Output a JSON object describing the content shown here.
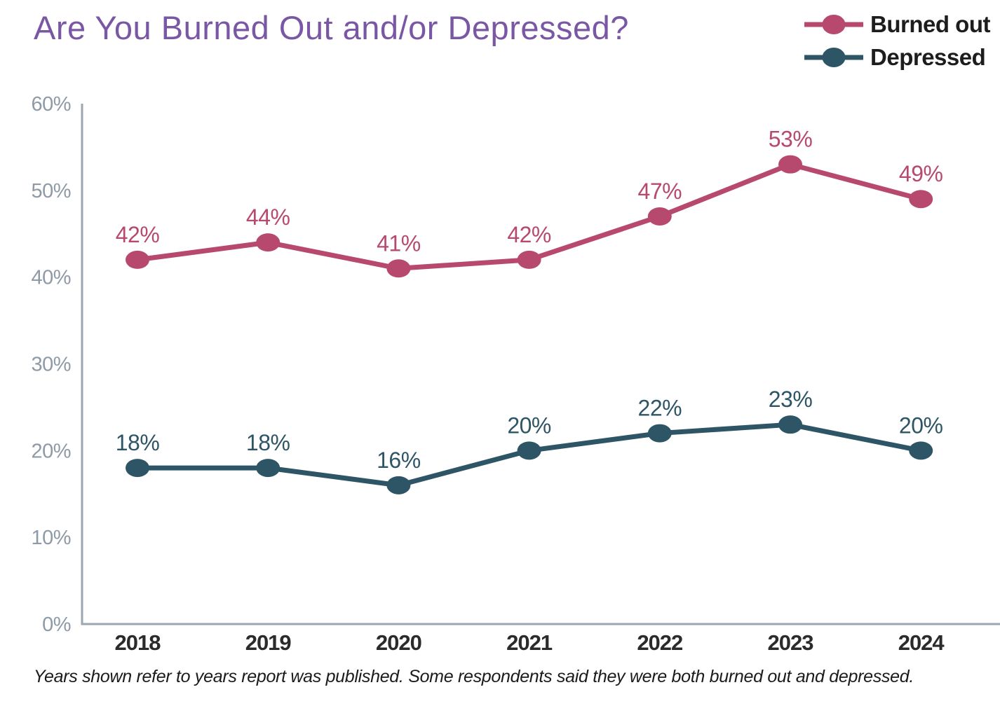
{
  "title": "Are You Burned Out and/or Depressed?",
  "legend": [
    {
      "label": "Burned out",
      "color": "#b8496e"
    },
    {
      "label": "Depressed",
      "color": "#2e5566"
    }
  ],
  "footnote": "Years shown refer to years report was published. Some respondents said they were both burned out and depressed.",
  "colors": {
    "title": "#7a57a5",
    "axis": "#9aa6b0",
    "y_tick_text": "#8e9aa6",
    "x_tick_text": "#2b2b2b",
    "background": "#ffffff"
  },
  "chart_data": {
    "type": "line",
    "categories": [
      "2018",
      "2019",
      "2020",
      "2021",
      "2022",
      "2023",
      "2024"
    ],
    "series": [
      {
        "name": "Burned out",
        "color": "#b8496e",
        "values": [
          42,
          44,
          41,
          42,
          47,
          53,
          49
        ],
        "labels": [
          "42%",
          "44%",
          "41%",
          "42%",
          "47%",
          "53%",
          "49%"
        ]
      },
      {
        "name": "Depressed",
        "color": "#2e5566",
        "values": [
          18,
          18,
          16,
          20,
          22,
          23,
          20
        ],
        "labels": [
          "18%",
          "18%",
          "16%",
          "20%",
          "22%",
          "23%",
          "20%"
        ]
      }
    ],
    "y_ticks": [
      "0%",
      "10%",
      "20%",
      "30%",
      "40%",
      "50%",
      "60%"
    ],
    "ylim": [
      0,
      60
    ],
    "grid": false,
    "legend_position": "top-right",
    "data_labels": true,
    "title": "Are You Burned Out and/or Depressed?"
  }
}
